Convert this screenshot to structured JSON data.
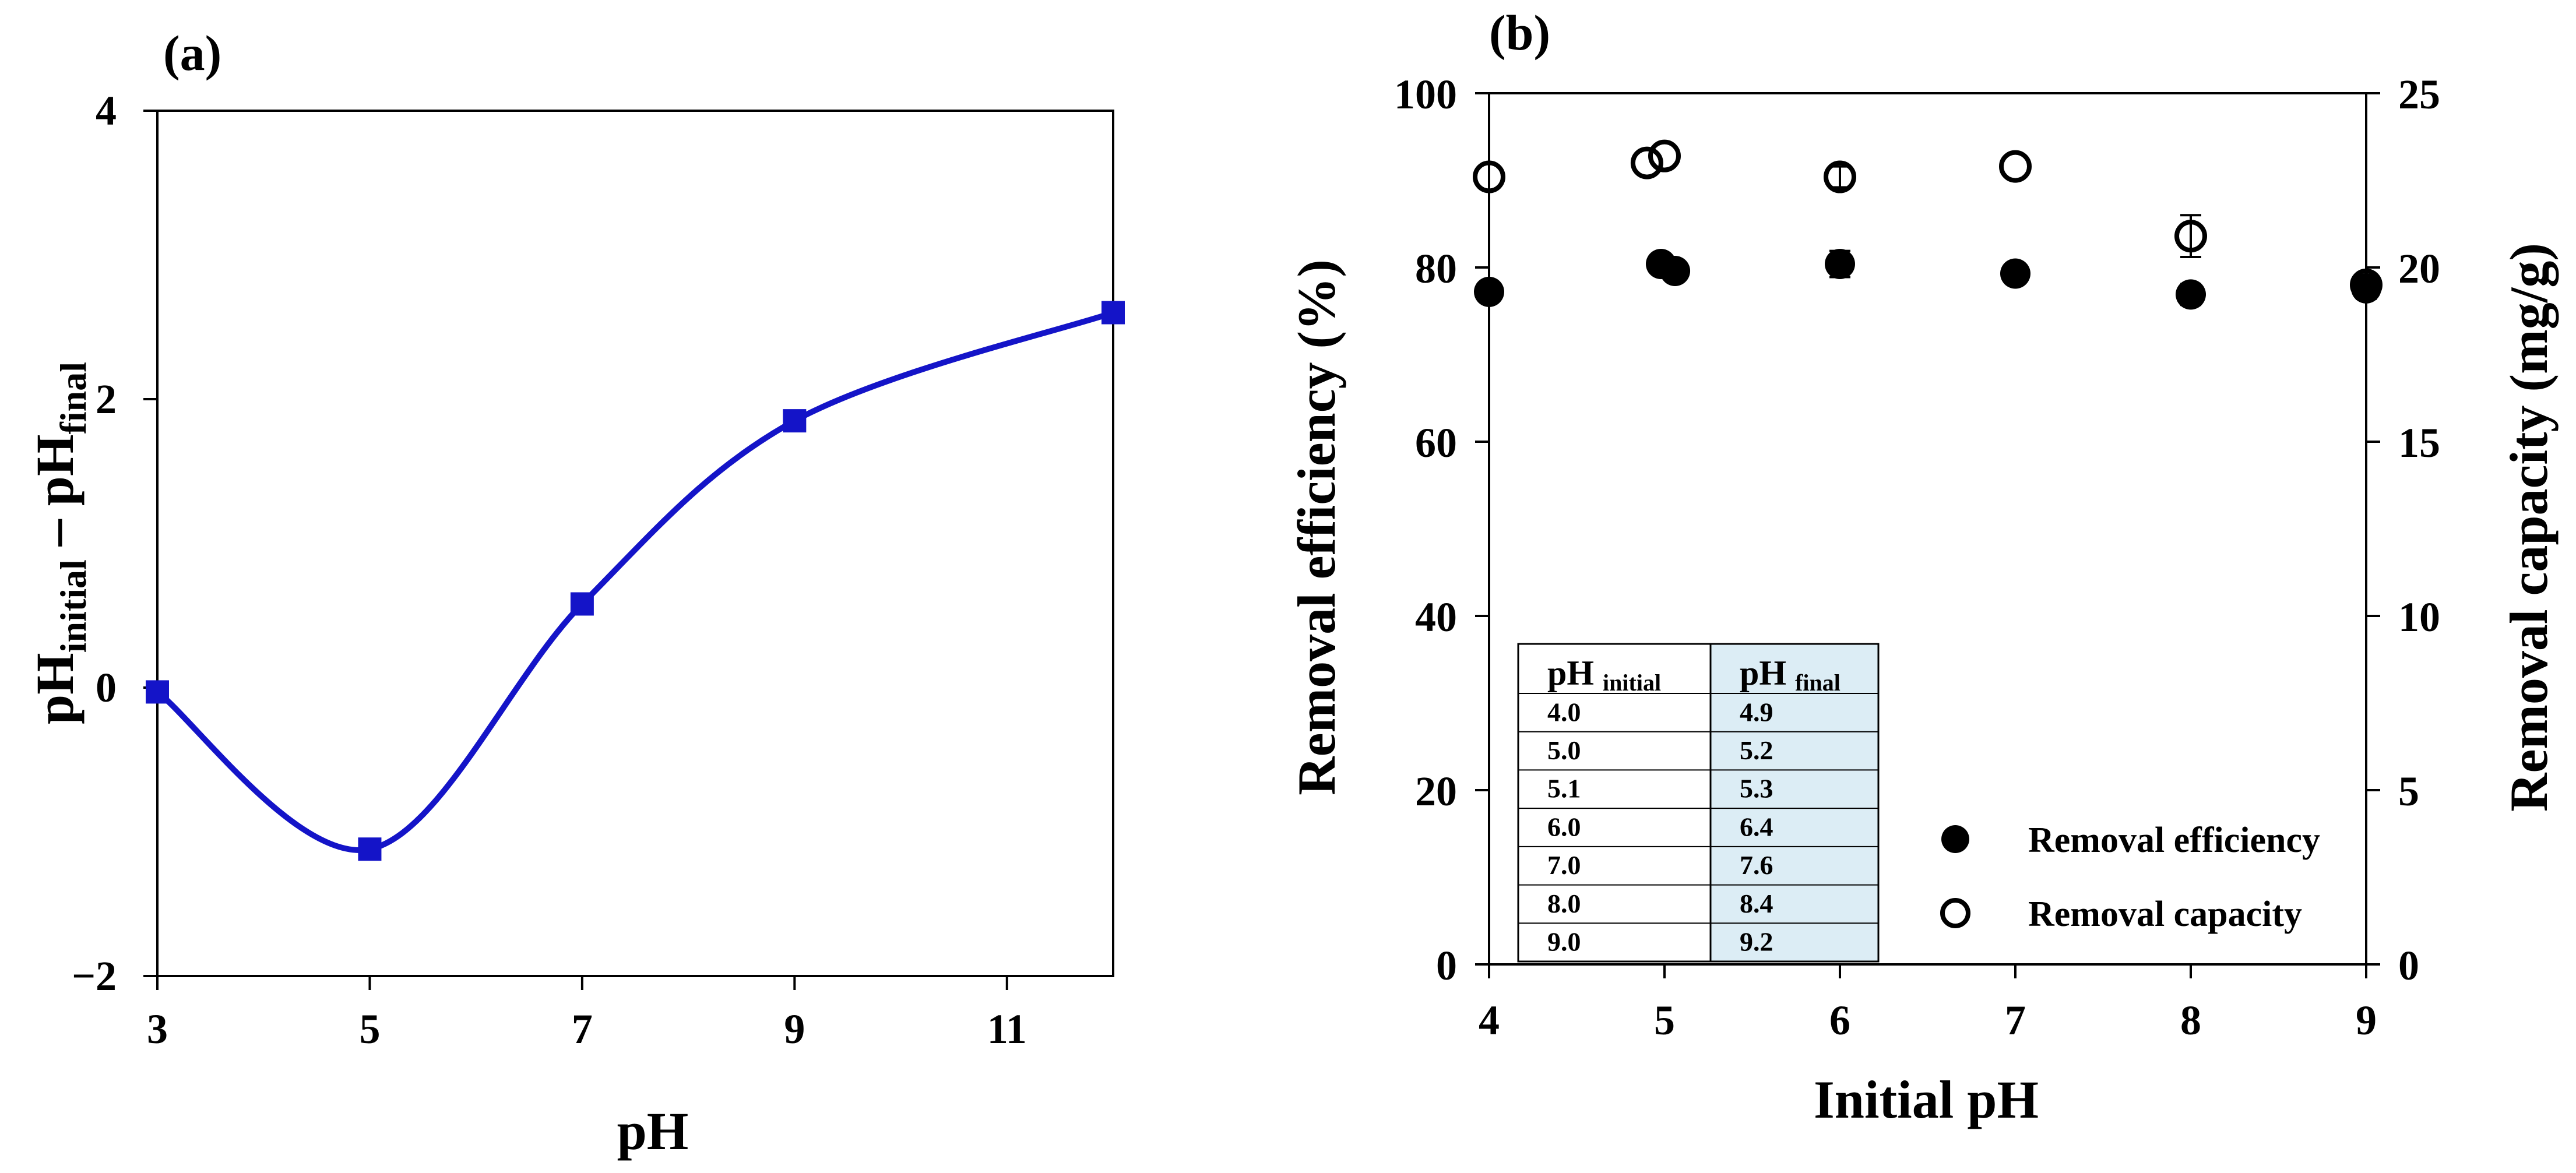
{
  "chart_data": [
    {
      "panel_label": "(a)",
      "type": "line",
      "xlabel": "pH",
      "ylabel_main": "pH",
      "ylabel_sub1": "initial",
      "ylabel_minus": " – pH",
      "ylabel_sub2": "final",
      "xlim": [
        3,
        12
      ],
      "ylim": [
        -2,
        4
      ],
      "xticks": [
        3,
        5,
        7,
        9,
        11
      ],
      "yticks": [
        4,
        2,
        0,
        -2
      ],
      "ytick_labels": [
        "4",
        "2",
        "0",
        "−2"
      ],
      "series": [
        {
          "name": "pH_initial - pH_final",
          "color": "#1414c8",
          "x": [
            3,
            5,
            7,
            9,
            12
          ],
          "y": [
            -0.03,
            -1.12,
            0.58,
            1.85,
            2.6
          ]
        }
      ]
    },
    {
      "panel_label": "(b)",
      "type": "scatter",
      "xlabel": "Initial pH",
      "ylabel": "Removal efficiency (%)",
      "ylabel_right": "Removal capacity (mg/g)",
      "xlim": [
        4,
        9
      ],
      "ylim": [
        0,
        100
      ],
      "ylim_right": [
        0,
        25
      ],
      "xticks": [
        4,
        5,
        6,
        7,
        8,
        9
      ],
      "yticks": [
        0,
        20,
        40,
        60,
        80,
        100
      ],
      "yticks_right": [
        0,
        5,
        10,
        15,
        20,
        25
      ],
      "series": [
        {
          "name": "Removal efficiency",
          "marker": "filled-circle",
          "axis": "left",
          "x": [
            4.0,
            4.98,
            5.06,
            6.0,
            7.0,
            8.0,
            9.0
          ],
          "y": [
            77.2,
            80.4,
            79.6,
            80.4,
            79.3,
            76.9,
            77.6
          ],
          "err": [
            0,
            0,
            0,
            1.5,
            0,
            1.2,
            1.2
          ]
        },
        {
          "name": "Removal capacity",
          "marker": "open-circle",
          "axis": "right",
          "x": [
            4.0,
            4.9,
            5.0,
            6.0,
            7.0,
            8.0,
            9.0
          ],
          "y": [
            22.6,
            23.0,
            23.2,
            22.6,
            22.9,
            20.9,
            19.5
          ],
          "err": [
            0,
            0,
            0,
            0.3,
            0,
            0.6,
            0
          ]
        }
      ],
      "legend_position": "bottom-right",
      "table": {
        "header_initial_main": "pH ",
        "header_initial_sub": "initial",
        "header_final_main": "pH ",
        "header_final_sub": "final",
        "rows": [
          [
            "4.0",
            "4.9"
          ],
          [
            "5.0",
            "5.2"
          ],
          [
            "5.1",
            "5.3"
          ],
          [
            "6.0",
            "6.4"
          ],
          [
            "7.0",
            "7.6"
          ],
          [
            "8.0",
            "8.4"
          ],
          [
            "9.0",
            "9.2"
          ]
        ],
        "final_column_color": "#dcedf5"
      }
    }
  ]
}
